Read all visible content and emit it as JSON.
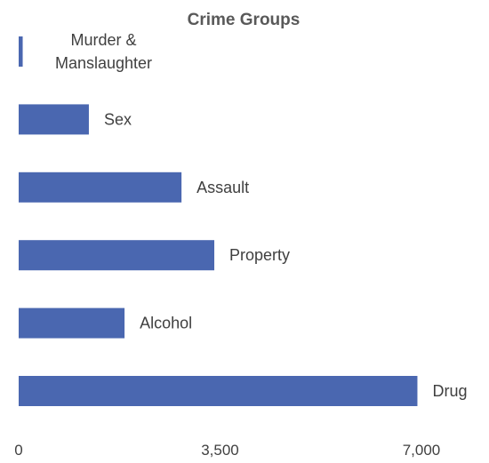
{
  "chart_data": {
    "type": "bar",
    "orientation": "horizontal",
    "title": "Crime Groups",
    "xlabel": "",
    "ylabel": "",
    "categories": [
      "Murder & Manslaughter",
      "Sex",
      "Assault",
      "Property",
      "Alcohol",
      "Drug"
    ],
    "category_label_lines": [
      [
        "Murder &",
        "Manslaughter"
      ],
      [
        "Sex"
      ],
      [
        "Assault"
      ],
      [
        "Property"
      ],
      [
        "Alcohol"
      ],
      [
        "Drug"
      ]
    ],
    "values": [
      70,
      1220,
      2830,
      3400,
      1840,
      6930
    ],
    "xlim": [
      0,
      7000
    ],
    "x_ticks": [
      "0",
      "3,500",
      "7,000"
    ],
    "bar_color": "#4A67B0",
    "grid": false,
    "legend": "none"
  }
}
